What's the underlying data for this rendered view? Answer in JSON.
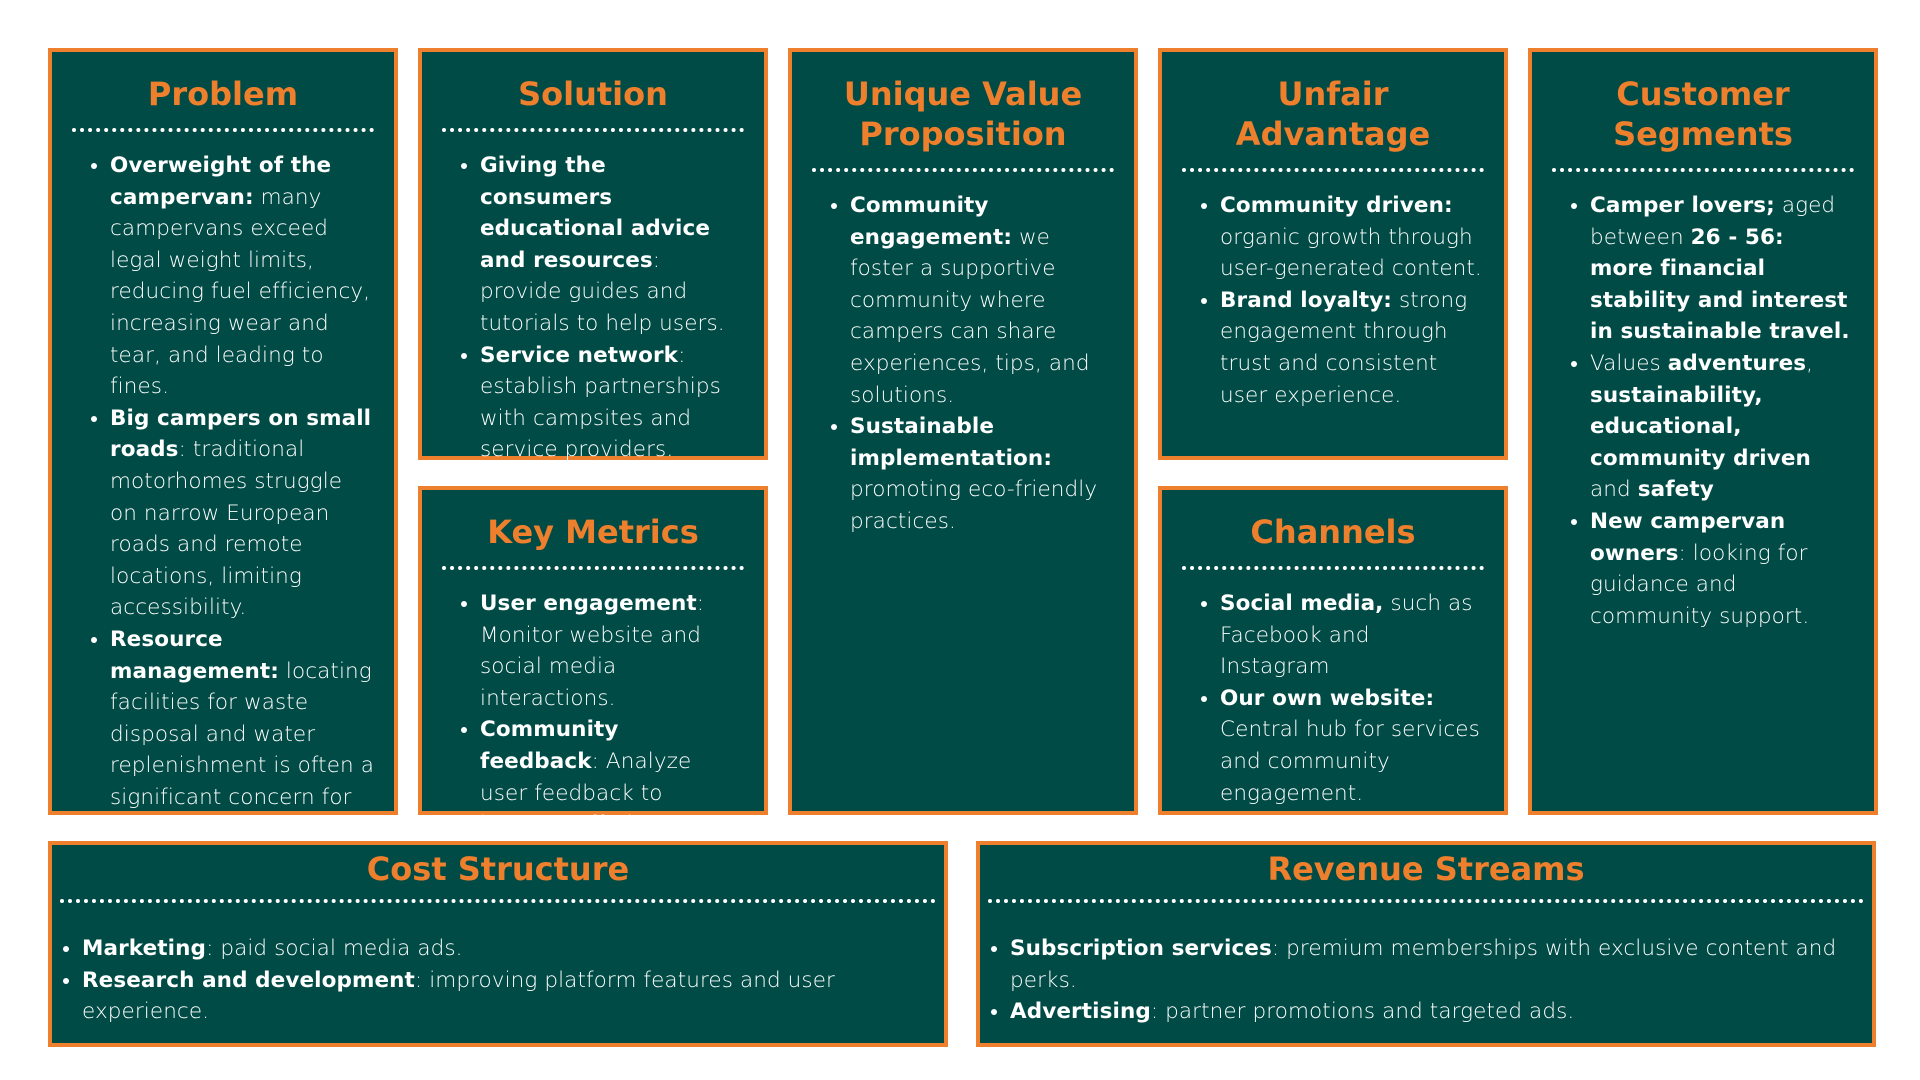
{
  "problem": {
    "title": "Problem",
    "items": [
      {
        "bold": "Overweight of the campervan:",
        "text": " many campervans exceed legal weight limits, reducing fuel efficiency, increasing wear and tear, and leading to fines."
      },
      {
        "bold": "Big campers on small roads",
        "text": ": traditional motorhomes struggle on narrow European roads and remote locations, limiting accessibility."
      },
      {
        "bold": "Resource management:",
        "text": " locating facilities for waste disposal and water replenishment is often a significant concern for travelers."
      }
    ]
  },
  "solution": {
    "title": "Solution",
    "items": [
      {
        "bold": "Giving the consumers educational advice and resources",
        "text": ": provide guides and tutorials to help users."
      },
      {
        "bold": "Service network",
        "text": ": establish partnerships with campsites and service providers."
      }
    ]
  },
  "key_metrics": {
    "title": "Key Metrics",
    "items": [
      {
        "bold": "User engagement",
        "text": ": Monitor website and social media interactions."
      },
      {
        "bold": "Community feedback",
        "text": ": Analyze user feedback to improve offerings."
      }
    ]
  },
  "uvp": {
    "title": "Unique Value Proposition",
    "items": [
      {
        "bold": "Community engagement:",
        "text": " we foster a supportive community where campers can share experiences, tips, and solutions."
      },
      {
        "bold": "Sustainable implementation:",
        "text": " promoting eco-friendly practices."
      }
    ]
  },
  "unfair_advantage": {
    "title": "Unfair Advantage",
    "items": [
      {
        "bold": "Community driven:",
        "text": " organic growth through user-generated content."
      },
      {
        "bold": "Brand loyalty:",
        "text": " strong engagement through trust and consistent user experience."
      }
    ]
  },
  "channels": {
    "title": "Channels",
    "items": [
      {
        "bold": "Social media,",
        "text": " such as Facebook and Instagram"
      },
      {
        "bold": "Our own website:",
        "text": " Central hub for services and community engagement."
      }
    ]
  },
  "customer_segments": {
    "title": "Customer Segments",
    "items": [
      {
        "parts": [
          {
            "b": "Camper lovers;"
          },
          {
            "t": " aged between "
          },
          {
            "b": "26 - 56: more financial stability and interest in sustainable travel."
          }
        ]
      },
      {
        "parts": [
          {
            "t": "Values "
          },
          {
            "b": "adventures"
          },
          {
            "t": ", "
          },
          {
            "b": "sustainability, educational, community driven"
          },
          {
            "t": " and "
          },
          {
            "b": "safety"
          }
        ]
      },
      {
        "parts": [
          {
            "b": "New campervan owners"
          },
          {
            "t": ": looking for guidance and community support."
          }
        ]
      }
    ]
  },
  "cost_structure": {
    "title": "Cost Structure",
    "items": [
      {
        "bold": "Marketing",
        "text": ": paid social media ads."
      },
      {
        "bold": "Research and development",
        "text": ": improving platform features and user experience."
      }
    ]
  },
  "revenue_streams": {
    "title": "Revenue Streams",
    "items": [
      {
        "bold": "Subscription services",
        "text": ": premium memberships with exclusive content and perks."
      },
      {
        "bold": "Advertising",
        "text": ": partner promotions and targeted ads."
      }
    ]
  },
  "colors": {
    "box_bg": "#004b45",
    "border": "#ee7f2d",
    "title": "#ee7f2d",
    "text": "#ffffff"
  }
}
